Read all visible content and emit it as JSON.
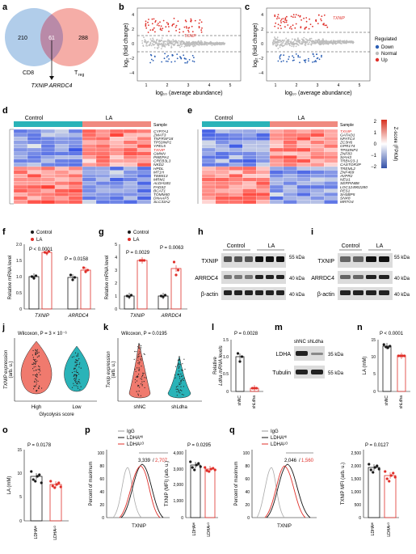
{
  "panels": {
    "a": {
      "label": "a",
      "venn": {
        "left_only": "210",
        "overlap": "61",
        "right_only": "288",
        "left_label": "CD8",
        "right_label": "T",
        "right_sub": "reg",
        "genes": "TXNIP ARRDC4"
      }
    },
    "b": {
      "label": "b",
      "marked_gene": "TXNIP"
    },
    "c": {
      "label": "c",
      "marked_gene": "TXNIP"
    },
    "ma_axes": {
      "ylabel": "log₂ (fold change)",
      "xlabel": "log₁₀ (average abundance)",
      "x_ticks": [
        "1",
        "2",
        "3",
        "4",
        "5"
      ],
      "y_ticks": [
        "4",
        "2",
        "0",
        "−2",
        "−4"
      ]
    },
    "legend_reg": {
      "title": "Regulated",
      "items": [
        "Down",
        "Normal",
        "Up"
      ],
      "colors": [
        "#2b5fb4",
        "#bdbdbd",
        "#e0302a"
      ]
    },
    "d": {
      "label": "d",
      "control": "Control",
      "treat": "LA",
      "sample": "Sample",
      "genes": [
        "CYP7A1",
        "ZMAT3",
        "TNFRSF18",
        "TP53INP1",
        "YPEL5",
        "TXNIP",
        "GMNN",
        "PMEPA1",
        "CREB3L3",
        "NKD2",
        "HPDL",
        "MT1H",
        "TIMM13",
        "MRM1",
        "ALDH1B1",
        "FADS2",
        "BCAT1",
        "TOMM40",
        "DNAAF5",
        "SLC33A2"
      ]
    },
    "e": {
      "label": "e",
      "control": "Control",
      "treat": "LA",
      "sample": "Sample",
      "genes": [
        "TXNIP",
        "GATAD1",
        "NFATC4",
        "ZC3H6",
        "GPR174",
        "TP53INP1",
        "ZNF83",
        "SIAH3",
        "TRBV23-1",
        "CASTOR3P",
        "TREML2",
        "ZNF469",
        "AVPR2",
        "NEU1",
        "SERPINB8",
        "LOC124902280",
        "PES1",
        "SH3BP5",
        "SNX8",
        "MRTO4"
      ]
    },
    "zscore": {
      "title": "Z-score (FPKM)",
      "ticks": [
        "2",
        "1",
        "0",
        "−1",
        "−2"
      ]
    },
    "f": {
      "label": "f",
      "ylabel": "Relative mRNA level",
      "legend": [
        "Control",
        "LA"
      ],
      "p_values": [
        "P < 0.0001",
        "P = 0.0158"
      ],
      "categories": [
        "TXNIP",
        "ARRDC4"
      ],
      "y_ticks": [
        "2.0",
        "1.5",
        "1.0",
        "0.5",
        "0"
      ]
    },
    "g": {
      "label": "g",
      "ylabel": "Relative mRNA level",
      "legend": [
        "Control",
        "LA"
      ],
      "p_values": [
        "P = 0.0029",
        "P = 0.0063"
      ],
      "categories": [
        "TXNIP",
        "ARRDC4"
      ],
      "y_ticks": [
        "5",
        "4",
        "3",
        "2",
        "1",
        "0"
      ]
    },
    "h": {
      "label": "h",
      "control": "Control",
      "treat": "LA",
      "rows": [
        "TXNIP",
        "ARRDC4",
        "β-actin"
      ],
      "kda": [
        "55 kDa",
        "40 kDa",
        "40 kDa"
      ]
    },
    "i": {
      "label": "i",
      "control": "Control",
      "treat": "LA",
      "rows": [
        "TXNIP",
        "ARRDC4",
        "β-actin"
      ],
      "kda": [
        "55 kDa",
        "40 kDa",
        "40 kDa"
      ]
    },
    "j": {
      "label": "j",
      "stat": "Wilcoxon, P = 3 × 10⁻⁶",
      "ylabel": "TXNIP expression",
      "yunit": "(arb. u.)",
      "categories": [
        "High",
        "Low"
      ],
      "xlabel": "Glycolysis score"
    },
    "k": {
      "label": "k",
      "stat": "Wilcoxon, P = 0.0195",
      "ylabel": "Txnip expression",
      "yunit": "(arb. u.)",
      "categories": [
        "shNC",
        "shLdha"
      ]
    },
    "l": {
      "label": "l",
      "p": "P = 0.0028",
      "ylabel": "Relative",
      "ylabel2": "Ldha mRNA levels",
      "categories": [
        "shNC",
        "shLdha"
      ],
      "y_ticks": [
        "1.5",
        "1.0",
        "0.5",
        "0"
      ]
    },
    "m": {
      "label": "m",
      "header": "shNC shLdha",
      "rows": [
        "LDHA",
        "Tubulin"
      ],
      "kda": [
        "35 kDa",
        "55 kDa"
      ]
    },
    "n": {
      "label": "n",
      "p": "P < 0.0001",
      "ylabel": "LA (mM)",
      "categories": [
        "shNC",
        "shLdha"
      ],
      "y_ticks": [
        "15",
        "10",
        "5",
        "0"
      ]
    },
    "o": {
      "label": "o",
      "p": "P = 0.0178",
      "ylabel": "LA (mM)",
      "categories": [
        "LDHAᴴᴵ",
        "LDHAᴸᴼ"
      ],
      "y_ticks": [
        "15",
        "10",
        "5",
        "0"
      ]
    },
    "p": {
      "label": "p",
      "legend": [
        "IgG",
        "LDHAᴴᴵ",
        "LDHAᴸᴼ"
      ],
      "mfi_hi": "3,339",
      "mfi_lo": "2,707",
      "ylabel": "Percent of maximum",
      "xlabel": "TXNIP",
      "bar_p": "P = 0.0295",
      "bar_ylabel": "TXNIP (MFI) (arb. u.)",
      "categories": [
        "LDHAᴴᴵ",
        "LDHAᴸᴼ"
      ],
      "y_ticks": [
        "100",
        "80",
        "60",
        "40",
        "20",
        "0"
      ],
      "bar_ticks": [
        "4,000",
        "3,000",
        "2,000",
        "1,000",
        "0"
      ]
    },
    "q": {
      "label": "q",
      "legend": [
        "IgG",
        "LDHAᴴᴵ",
        "LDHAᴸᴼ"
      ],
      "mfi_hi": "2,046",
      "mfi_lo": "1,560",
      "ylabel": "Percent of maximum",
      "xlabel": "TXNIP",
      "bar_p": "P = 0.0127",
      "bar_ylabel": "TXNIP MFI (arb. u.)",
      "categories": [
        "LDHAᴴᴵ",
        "LDHAᴸᴼ"
      ],
      "y_ticks": [
        "100",
        "80",
        "60",
        "40",
        "20",
        "0"
      ],
      "bar_ticks": [
        "2,500",
        "2,000",
        "1,500",
        "1,000",
        "500",
        "0"
      ]
    }
  },
  "colors": {
    "control": "#1a1a1a",
    "treat": "#e0302a",
    "teal": "#2ab3b8",
    "salmon": "#f08a80",
    "up": "#e0302a",
    "down": "#2b5fb4",
    "normal": "#bdbdbd"
  }
}
